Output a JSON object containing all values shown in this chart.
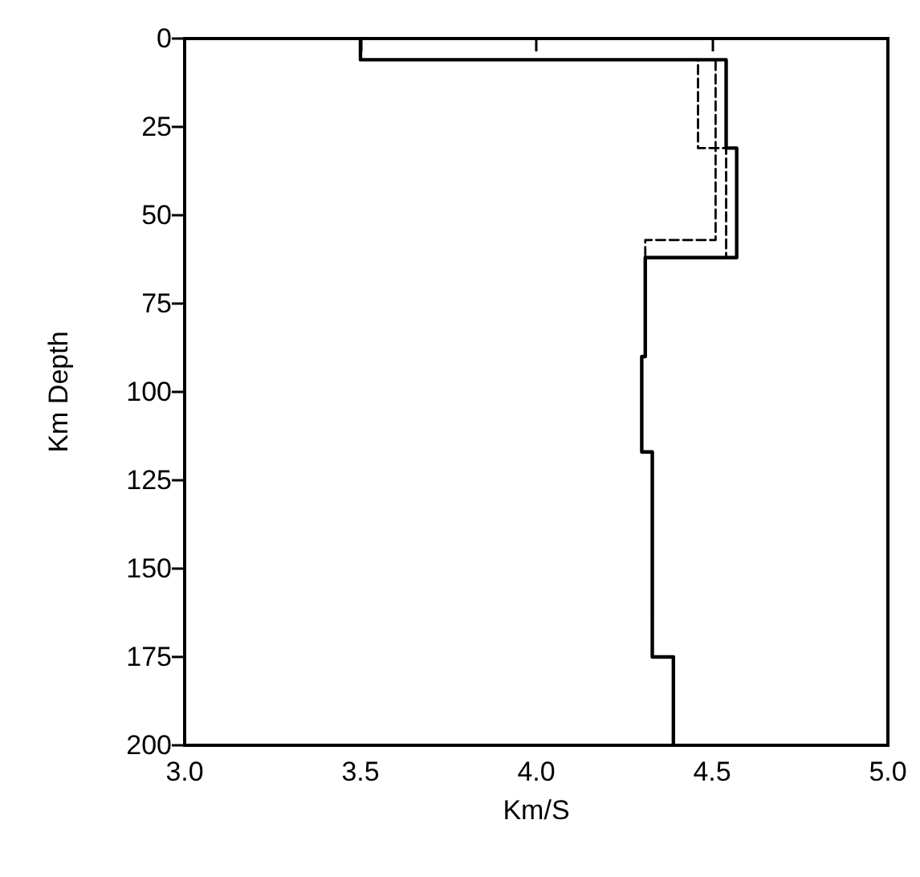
{
  "chart_data": {
    "type": "line",
    "xlabel": "Km/S",
    "ylabel": "Km Depth",
    "xlim": [
      3.0,
      5.0
    ],
    "xticks": [
      {
        "value": 3.0,
        "label": "3.0"
      },
      {
        "value": 3.5,
        "label": "3.5"
      },
      {
        "value": 4.0,
        "label": "4.0"
      },
      {
        "value": 4.5,
        "label": "4.5"
      },
      {
        "value": 5.0,
        "label": "5.0"
      }
    ],
    "ylim": [
      200,
      0
    ],
    "yticks": [
      0,
      25,
      50,
      75,
      100,
      125,
      150,
      175,
      200
    ],
    "marker": "none",
    "series": [
      {
        "color": "#000000",
        "line_style": "dashed",
        "x": [
          3.5,
          3.5,
          4.46,
          4.46,
          4.51,
          4.51,
          4.31,
          4.31
        ],
        "values": [
          0,
          6,
          6,
          31,
          31,
          57,
          57,
          62
        ]
      },
      {
        "color": "#000000",
        "line_style": "dashed",
        "x": [
          3.5,
          3.5,
          4.51,
          4.51,
          4.54,
          4.54,
          4.31
        ],
        "values": [
          0,
          6,
          6,
          31,
          31,
          62,
          62
        ]
      },
      {
        "color": "#000000",
        "line_style": "solid",
        "x": [
          3.5,
          3.5,
          4.54,
          4.54,
          4.57,
          4.57,
          4.31,
          4.31,
          4.3,
          4.3,
          4.33,
          4.33,
          4.33,
          4.33,
          4.39,
          4.39
        ],
        "values": [
          0,
          6,
          6,
          31,
          31,
          62,
          62,
          90,
          90,
          117,
          117,
          146,
          146,
          175,
          175,
          200
        ]
      }
    ]
  }
}
